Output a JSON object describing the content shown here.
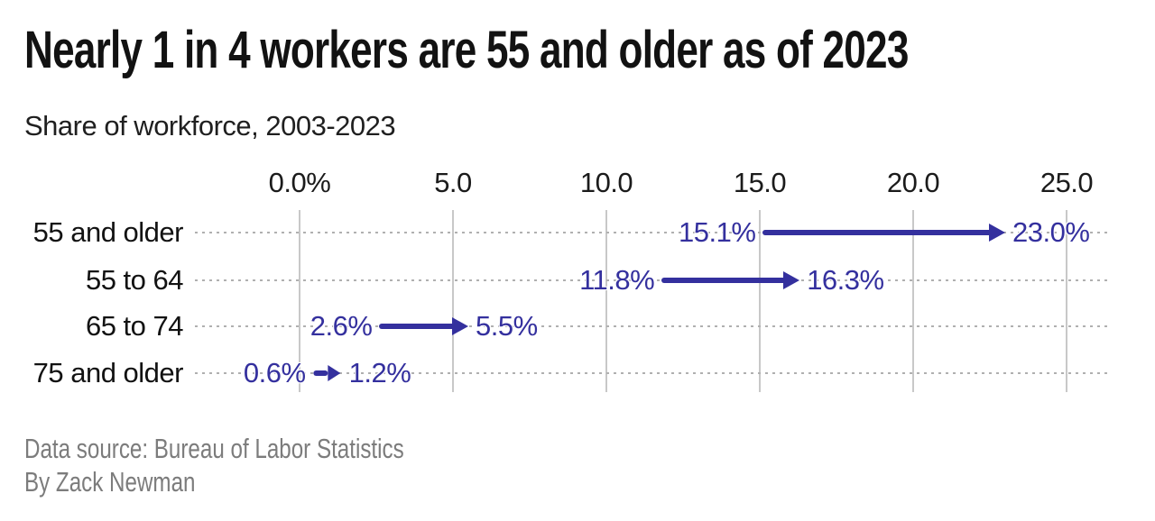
{
  "header": {
    "title": "Nearly 1 in 4 workers are 55 and older as of 2023",
    "subtitle": "Share of workforce, 2003-2023"
  },
  "footer": {
    "source": "Data source: Bureau of Labor Statistics",
    "byline": "By Zack Newman"
  },
  "colors": {
    "background": "#ffffff",
    "arrow": "#34309e",
    "value_label": "#34309e",
    "gridline": "#c8c8c8",
    "dotted_line": "#b0b0b0",
    "title": "#121212",
    "axis_label": "#1b1b1b",
    "row_label": "#121212",
    "footer_text": "#7c7c7c"
  },
  "chart_data": {
    "type": "arrow",
    "title": "Nearly 1 in 4 workers are 55 and older as of 2023",
    "subtitle": "Share of workforce, 2003-2023",
    "categories": [
      "55 and older",
      "55 to 64",
      "65 to 74",
      "75 and older"
    ],
    "series": [
      {
        "name": "2003",
        "values": [
          15.1,
          11.8,
          2.6,
          0.6
        ]
      },
      {
        "name": "2023",
        "values": [
          23.0,
          16.3,
          5.5,
          1.2
        ]
      }
    ],
    "start_labels": [
      "15.1%",
      "11.8%",
      "2.6%",
      "0.6%"
    ],
    "end_labels": [
      "23.0%",
      "16.3%",
      "5.5%",
      "1.2%"
    ],
    "x_ticks": [
      {
        "value": 0,
        "label": "0.0%"
      },
      {
        "value": 5,
        "label": "5.0"
      },
      {
        "value": 10,
        "label": "10.0"
      },
      {
        "value": 15,
        "label": "15.0"
      },
      {
        "value": 20,
        "label": "20.0"
      },
      {
        "value": 25,
        "label": "25.0"
      }
    ],
    "xlim": [
      0,
      26.5
    ],
    "unit": "%",
    "grid": "vertical",
    "legend": "none",
    "source": "Bureau of Labor Statistics",
    "byline": "Zack Newman"
  }
}
